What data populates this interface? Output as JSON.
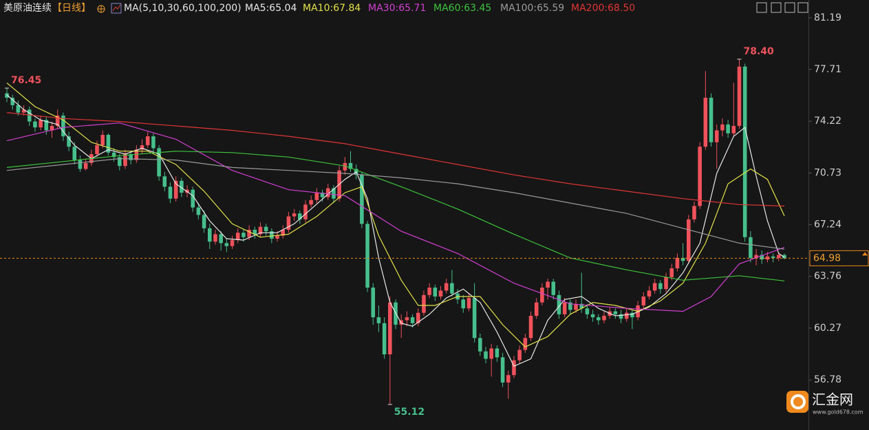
{
  "chart_data": {
    "type": "candlestick",
    "title": "美原油连续",
    "period": "【日线】",
    "indicator": "MA(5,10,30,60,100,200)",
    "up_color": "#f0525c",
    "down_color": "#46bf8c",
    "ylim": [
      53.4,
      82.39
    ],
    "yticks": [
      56.78,
      60.27,
      63.76,
      67.24,
      70.73,
      74.22,
      77.71,
      81.19
    ],
    "last_price": 64.98,
    "ohlc": [
      [
        76.1,
        76.45,
        75.5,
        75.8
      ],
      [
        75.8,
        76.0,
        75.0,
        75.3
      ],
      [
        75.3,
        75.6,
        74.6,
        74.8
      ],
      [
        74.8,
        75.3,
        74.6,
        75.0
      ],
      [
        75.0,
        75.2,
        73.9,
        74.2
      ],
      [
        74.2,
        74.4,
        73.5,
        73.8
      ],
      [
        73.8,
        74.6,
        73.6,
        74.3
      ],
      [
        74.3,
        74.5,
        73.3,
        73.6
      ],
      [
        73.6,
        74.2,
        73.1,
        73.9
      ],
      [
        73.9,
        75.0,
        73.7,
        74.6
      ],
      [
        74.6,
        74.8,
        72.9,
        73.2
      ],
      [
        73.2,
        73.5,
        72.2,
        72.5
      ],
      [
        72.5,
        72.8,
        71.3,
        71.6
      ],
      [
        71.6,
        71.9,
        70.8,
        71.0
      ],
      [
        71.0,
        71.7,
        70.9,
        71.4
      ],
      [
        71.4,
        72.3,
        71.2,
        72.0
      ],
      [
        72.0,
        72.9,
        71.8,
        72.6
      ],
      [
        72.6,
        73.6,
        72.4,
        73.3
      ],
      [
        73.3,
        73.4,
        71.9,
        72.1
      ],
      [
        72.1,
        72.4,
        71.5,
        71.8
      ],
      [
        71.8,
        72.0,
        70.9,
        71.2
      ],
      [
        71.2,
        72.3,
        71.0,
        72.0
      ],
      [
        72.0,
        72.2,
        71.3,
        71.6
      ],
      [
        71.6,
        72.6,
        71.4,
        72.3
      ],
      [
        72.3,
        73.0,
        72.0,
        72.6
      ],
      [
        72.6,
        73.5,
        72.4,
        73.2
      ],
      [
        73.2,
        73.4,
        72.1,
        72.4
      ],
      [
        72.4,
        72.6,
        70.2,
        70.5
      ],
      [
        70.5,
        70.8,
        69.5,
        69.8
      ],
      [
        69.8,
        70.1,
        68.7,
        69.0
      ],
      [
        69.0,
        70.5,
        68.8,
        70.2
      ],
      [
        70.2,
        70.4,
        69.1,
        69.4
      ],
      [
        69.4,
        69.9,
        69.1,
        69.6
      ],
      [
        69.6,
        69.8,
        68.1,
        68.4
      ],
      [
        68.4,
        68.7,
        67.6,
        67.9
      ],
      [
        67.9,
        68.2,
        66.7,
        67.0
      ],
      [
        67.0,
        67.3,
        65.6,
        66.1
      ],
      [
        66.1,
        66.9,
        65.9,
        66.6
      ],
      [
        66.6,
        66.8,
        65.5,
        66.0
      ],
      [
        66.0,
        66.3,
        65.4,
        65.8
      ],
      [
        65.8,
        66.5,
        65.6,
        66.2
      ],
      [
        66.2,
        67.0,
        66.0,
        66.7
      ],
      [
        66.7,
        66.9,
        66.1,
        66.4
      ],
      [
        66.4,
        67.2,
        66.2,
        66.9
      ],
      [
        66.9,
        67.1,
        66.3,
        66.6
      ],
      [
        66.6,
        67.4,
        66.4,
        67.1
      ],
      [
        67.1,
        67.3,
        66.5,
        66.8
      ],
      [
        66.8,
        67.0,
        66.0,
        66.3
      ],
      [
        66.3,
        66.8,
        66.1,
        66.5
      ],
      [
        66.5,
        67.2,
        66.3,
        66.9
      ],
      [
        66.9,
        68.1,
        66.7,
        67.8
      ],
      [
        67.8,
        68.3,
        67.5,
        68.0
      ],
      [
        68.0,
        68.2,
        67.3,
        67.6
      ],
      [
        67.6,
        68.9,
        67.4,
        68.6
      ],
      [
        68.6,
        69.2,
        68.4,
        68.9
      ],
      [
        68.9,
        69.7,
        68.7,
        69.4
      ],
      [
        69.4,
        69.6,
        68.8,
        69.1
      ],
      [
        69.1,
        70.0,
        68.9,
        69.7
      ],
      [
        69.7,
        69.9,
        68.7,
        69.0
      ],
      [
        69.0,
        71.2,
        68.8,
        70.9
      ],
      [
        70.9,
        71.8,
        70.6,
        71.4
      ],
      [
        71.4,
        72.2,
        70.8,
        71.0
      ],
      [
        71.0,
        71.3,
        70.3,
        70.6
      ],
      [
        70.6,
        70.8,
        67.0,
        67.3
      ],
      [
        67.3,
        67.5,
        62.7,
        63.0
      ],
      [
        63.0,
        63.3,
        60.5,
        61.0
      ],
      [
        61.0,
        61.8,
        60.0,
        60.6
      ],
      [
        60.6,
        61.0,
        58.2,
        58.5
      ],
      [
        58.5,
        62.4,
        55.12,
        62.0
      ],
      [
        62.0,
        62.2,
        60.2,
        60.5
      ],
      [
        60.5,
        61.2,
        59.6,
        60.8
      ],
      [
        60.8,
        61.4,
        60.4,
        61.0
      ],
      [
        61.0,
        61.2,
        60.3,
        60.6
      ],
      [
        60.6,
        61.6,
        60.4,
        61.3
      ],
      [
        61.3,
        62.8,
        61.1,
        62.5
      ],
      [
        62.5,
        63.3,
        62.3,
        63.0
      ],
      [
        63.0,
        63.2,
        62.1,
        62.4
      ],
      [
        62.4,
        63.1,
        62.2,
        62.8
      ],
      [
        62.8,
        63.6,
        62.6,
        63.3
      ],
      [
        63.3,
        64.2,
        62.4,
        62.6
      ],
      [
        62.6,
        62.9,
        61.9,
        62.2
      ],
      [
        62.2,
        62.5,
        61.3,
        61.6
      ],
      [
        61.6,
        62.6,
        61.4,
        62.3
      ],
      [
        62.3,
        63.3,
        59.3,
        59.6
      ],
      [
        59.6,
        59.9,
        58.4,
        58.7
      ],
      [
        58.7,
        59.0,
        57.9,
        58.2
      ],
      [
        58.2,
        59.2,
        57.0,
        58.9
      ],
      [
        58.9,
        59.1,
        58.0,
        58.3
      ],
      [
        58.3,
        58.6,
        56.3,
        56.6
      ],
      [
        56.6,
        57.4,
        55.5,
        57.1
      ],
      [
        57.1,
        58.4,
        56.9,
        58.1
      ],
      [
        58.1,
        59.1,
        57.9,
        58.8
      ],
      [
        58.8,
        59.9,
        58.6,
        59.6
      ],
      [
        59.6,
        61.4,
        59.4,
        61.1
      ],
      [
        61.1,
        62.3,
        60.9,
        62.0
      ],
      [
        62.0,
        63.3,
        61.8,
        63.0
      ],
      [
        63.0,
        63.6,
        62.2,
        63.4
      ],
      [
        63.4,
        63.6,
        62.2,
        62.5
      ],
      [
        62.5,
        62.8,
        60.9,
        61.2
      ],
      [
        61.2,
        62.3,
        61.0,
        62.0
      ],
      [
        62.0,
        62.2,
        61.2,
        61.5
      ],
      [
        61.5,
        62.2,
        61.3,
        61.9
      ],
      [
        61.9,
        64.0,
        61.3,
        61.6
      ],
      [
        61.6,
        61.9,
        60.9,
        61.2
      ],
      [
        61.2,
        61.5,
        60.7,
        61.0
      ],
      [
        61.0,
        61.2,
        60.5,
        60.8
      ],
      [
        60.8,
        61.4,
        60.6,
        61.1
      ],
      [
        61.1,
        61.7,
        60.9,
        61.4
      ],
      [
        61.4,
        61.6,
        60.9,
        61.2
      ],
      [
        61.2,
        61.5,
        60.6,
        60.9
      ],
      [
        60.9,
        61.6,
        60.7,
        61.3
      ],
      [
        61.3,
        61.5,
        60.2,
        61.0
      ],
      [
        61.0,
        62.1,
        60.8,
        61.8
      ],
      [
        61.8,
        62.7,
        61.6,
        62.4
      ],
      [
        62.4,
        63.1,
        62.2,
        62.8
      ],
      [
        62.8,
        63.6,
        62.6,
        63.3
      ],
      [
        63.3,
        63.5,
        62.6,
        62.9
      ],
      [
        62.9,
        64.0,
        62.7,
        63.7
      ],
      [
        63.7,
        64.6,
        63.5,
        64.3
      ],
      [
        64.3,
        65.3,
        64.1,
        65.0
      ],
      [
        65.0,
        66.0,
        64.5,
        64.8
      ],
      [
        64.8,
        67.9,
        64.6,
        67.6
      ],
      [
        67.6,
        68.8,
        67.4,
        68.5
      ],
      [
        68.5,
        72.8,
        68.3,
        72.5
      ],
      [
        72.5,
        77.6,
        72.3,
        75.8
      ],
      [
        75.8,
        76.1,
        72.5,
        72.8
      ],
      [
        72.8,
        74.0,
        71.0,
        73.6
      ],
      [
        73.6,
        74.4,
        73.2,
        74.0
      ],
      [
        74.0,
        74.3,
        73.1,
        73.4
      ],
      [
        73.4,
        76.8,
        73.2,
        73.9
      ],
      [
        73.9,
        78.4,
        73.7,
        77.9
      ],
      [
        77.9,
        78.1,
        66.1,
        66.4
      ],
      [
        66.4,
        66.8,
        64.7,
        65.0
      ],
      [
        65.0,
        65.6,
        64.5,
        65.2
      ],
      [
        65.2,
        65.5,
        64.6,
        64.9
      ],
      [
        64.9,
        65.4,
        64.7,
        65.1
      ],
      [
        65.1,
        65.3,
        64.7,
        65.0
      ],
      [
        65.0,
        65.4,
        64.8,
        65.2
      ],
      [
        65.2,
        65.3,
        64.9,
        64.98
      ]
    ],
    "annotations": [
      {
        "candle": 0,
        "value": 76.45,
        "label": "76.45"
      },
      {
        "candle": 130,
        "value": 78.4,
        "label": "78.40"
      },
      {
        "candle": 68,
        "value": 55.12,
        "label": "55.12"
      }
    ],
    "series": [
      {
        "label": "MA5:65.04",
        "color": "#e8e8e8",
        "x": [
          0,
          3,
          6,
          9,
          12,
          15,
          18,
          21,
          24,
          27,
          30,
          33,
          36,
          39,
          42,
          45,
          48,
          51,
          54,
          57,
          60,
          62,
          64,
          66,
          68,
          70,
          72,
          75,
          78,
          81,
          84,
          87,
          90,
          93,
          96,
          99,
          102,
          105,
          108,
          111,
          114,
          117,
          120,
          123,
          126,
          129,
          131,
          133,
          135,
          137,
          138
        ],
        "values": [
          76.0,
          75.0,
          74.3,
          74.0,
          72.6,
          71.7,
          72.3,
          72.0,
          72.4,
          72.0,
          70.0,
          69.2,
          67.5,
          66.3,
          66.2,
          66.7,
          66.7,
          67.3,
          68.3,
          69.3,
          70.3,
          70.8,
          69.0,
          65.0,
          62.0,
          60.6,
          60.4,
          61.2,
          62.3,
          62.9,
          62.0,
          60.0,
          57.7,
          58.2,
          60.8,
          62.2,
          62.4,
          61.6,
          61.1,
          61.2,
          61.7,
          62.6,
          64.0,
          66.0,
          70.7,
          73.2,
          73.8,
          70.5,
          67.5,
          65.3,
          65.04
        ]
      },
      {
        "label": "MA10:67.84",
        "color": "#e3e24a",
        "x": [
          0,
          5,
          10,
          15,
          20,
          25,
          30,
          35,
          40,
          45,
          50,
          55,
          60,
          63,
          66,
          70,
          73,
          76,
          80,
          84,
          88,
          92,
          96,
          100,
          104,
          108,
          112,
          116,
          120,
          124,
          128,
          132,
          135,
          138
        ],
        "values": [
          76.8,
          75.2,
          74.3,
          72.8,
          72.2,
          72.2,
          71.3,
          69.5,
          67.3,
          66.4,
          66.6,
          67.8,
          69.4,
          69.8,
          66.5,
          63.5,
          61.8,
          61.8,
          62.4,
          62.4,
          60.5,
          59.0,
          59.7,
          61.2,
          62.0,
          61.8,
          61.4,
          62.1,
          63.3,
          66.0,
          70.0,
          71.0,
          70.3,
          67.84
        ]
      },
      {
        "label": "MA30:65.71",
        "color": "#d43fd4",
        "x": [
          0,
          10,
          20,
          30,
          40,
          50,
          60,
          70,
          80,
          90,
          100,
          110,
          120,
          125,
          130,
          138
        ],
        "values": [
          72.9,
          73.8,
          74.1,
          73.0,
          70.9,
          69.6,
          69.2,
          66.8,
          65.3,
          63.3,
          61.9,
          61.6,
          61.4,
          62.4,
          64.6,
          65.71
        ]
      },
      {
        "label": "MA60:63.45",
        "color": "#3cc43c",
        "x": [
          0,
          10,
          20,
          30,
          40,
          50,
          60,
          70,
          80,
          90,
          100,
          110,
          120,
          130,
          138
        ],
        "values": [
          71.1,
          71.5,
          71.9,
          72.2,
          72.1,
          71.8,
          71.2,
          69.8,
          68.3,
          66.6,
          65.0,
          64.2,
          63.5,
          63.8,
          63.45
        ]
      },
      {
        "label": "MA100:65.59",
        "color": "#9a9a9a",
        "x": [
          0,
          10,
          20,
          30,
          40,
          50,
          60,
          70,
          80,
          90,
          100,
          110,
          120,
          130,
          138
        ],
        "values": [
          70.9,
          71.3,
          71.7,
          71.6,
          71.1,
          70.9,
          70.7,
          70.4,
          70.0,
          69.4,
          68.7,
          68.0,
          67.0,
          66.0,
          65.59
        ]
      },
      {
        "label": "MA200:68.50",
        "color": "#e03535",
        "x": [
          0,
          10,
          20,
          30,
          40,
          50,
          60,
          70,
          80,
          90,
          100,
          110,
          120,
          130,
          138
        ],
        "values": [
          74.8,
          74.4,
          74.2,
          73.9,
          73.6,
          73.2,
          72.7,
          72.0,
          71.3,
          70.6,
          70.0,
          69.5,
          69.0,
          68.6,
          68.5
        ]
      }
    ],
    "watermark": {
      "name": "汇金网",
      "url": "www.gold678.com"
    }
  }
}
